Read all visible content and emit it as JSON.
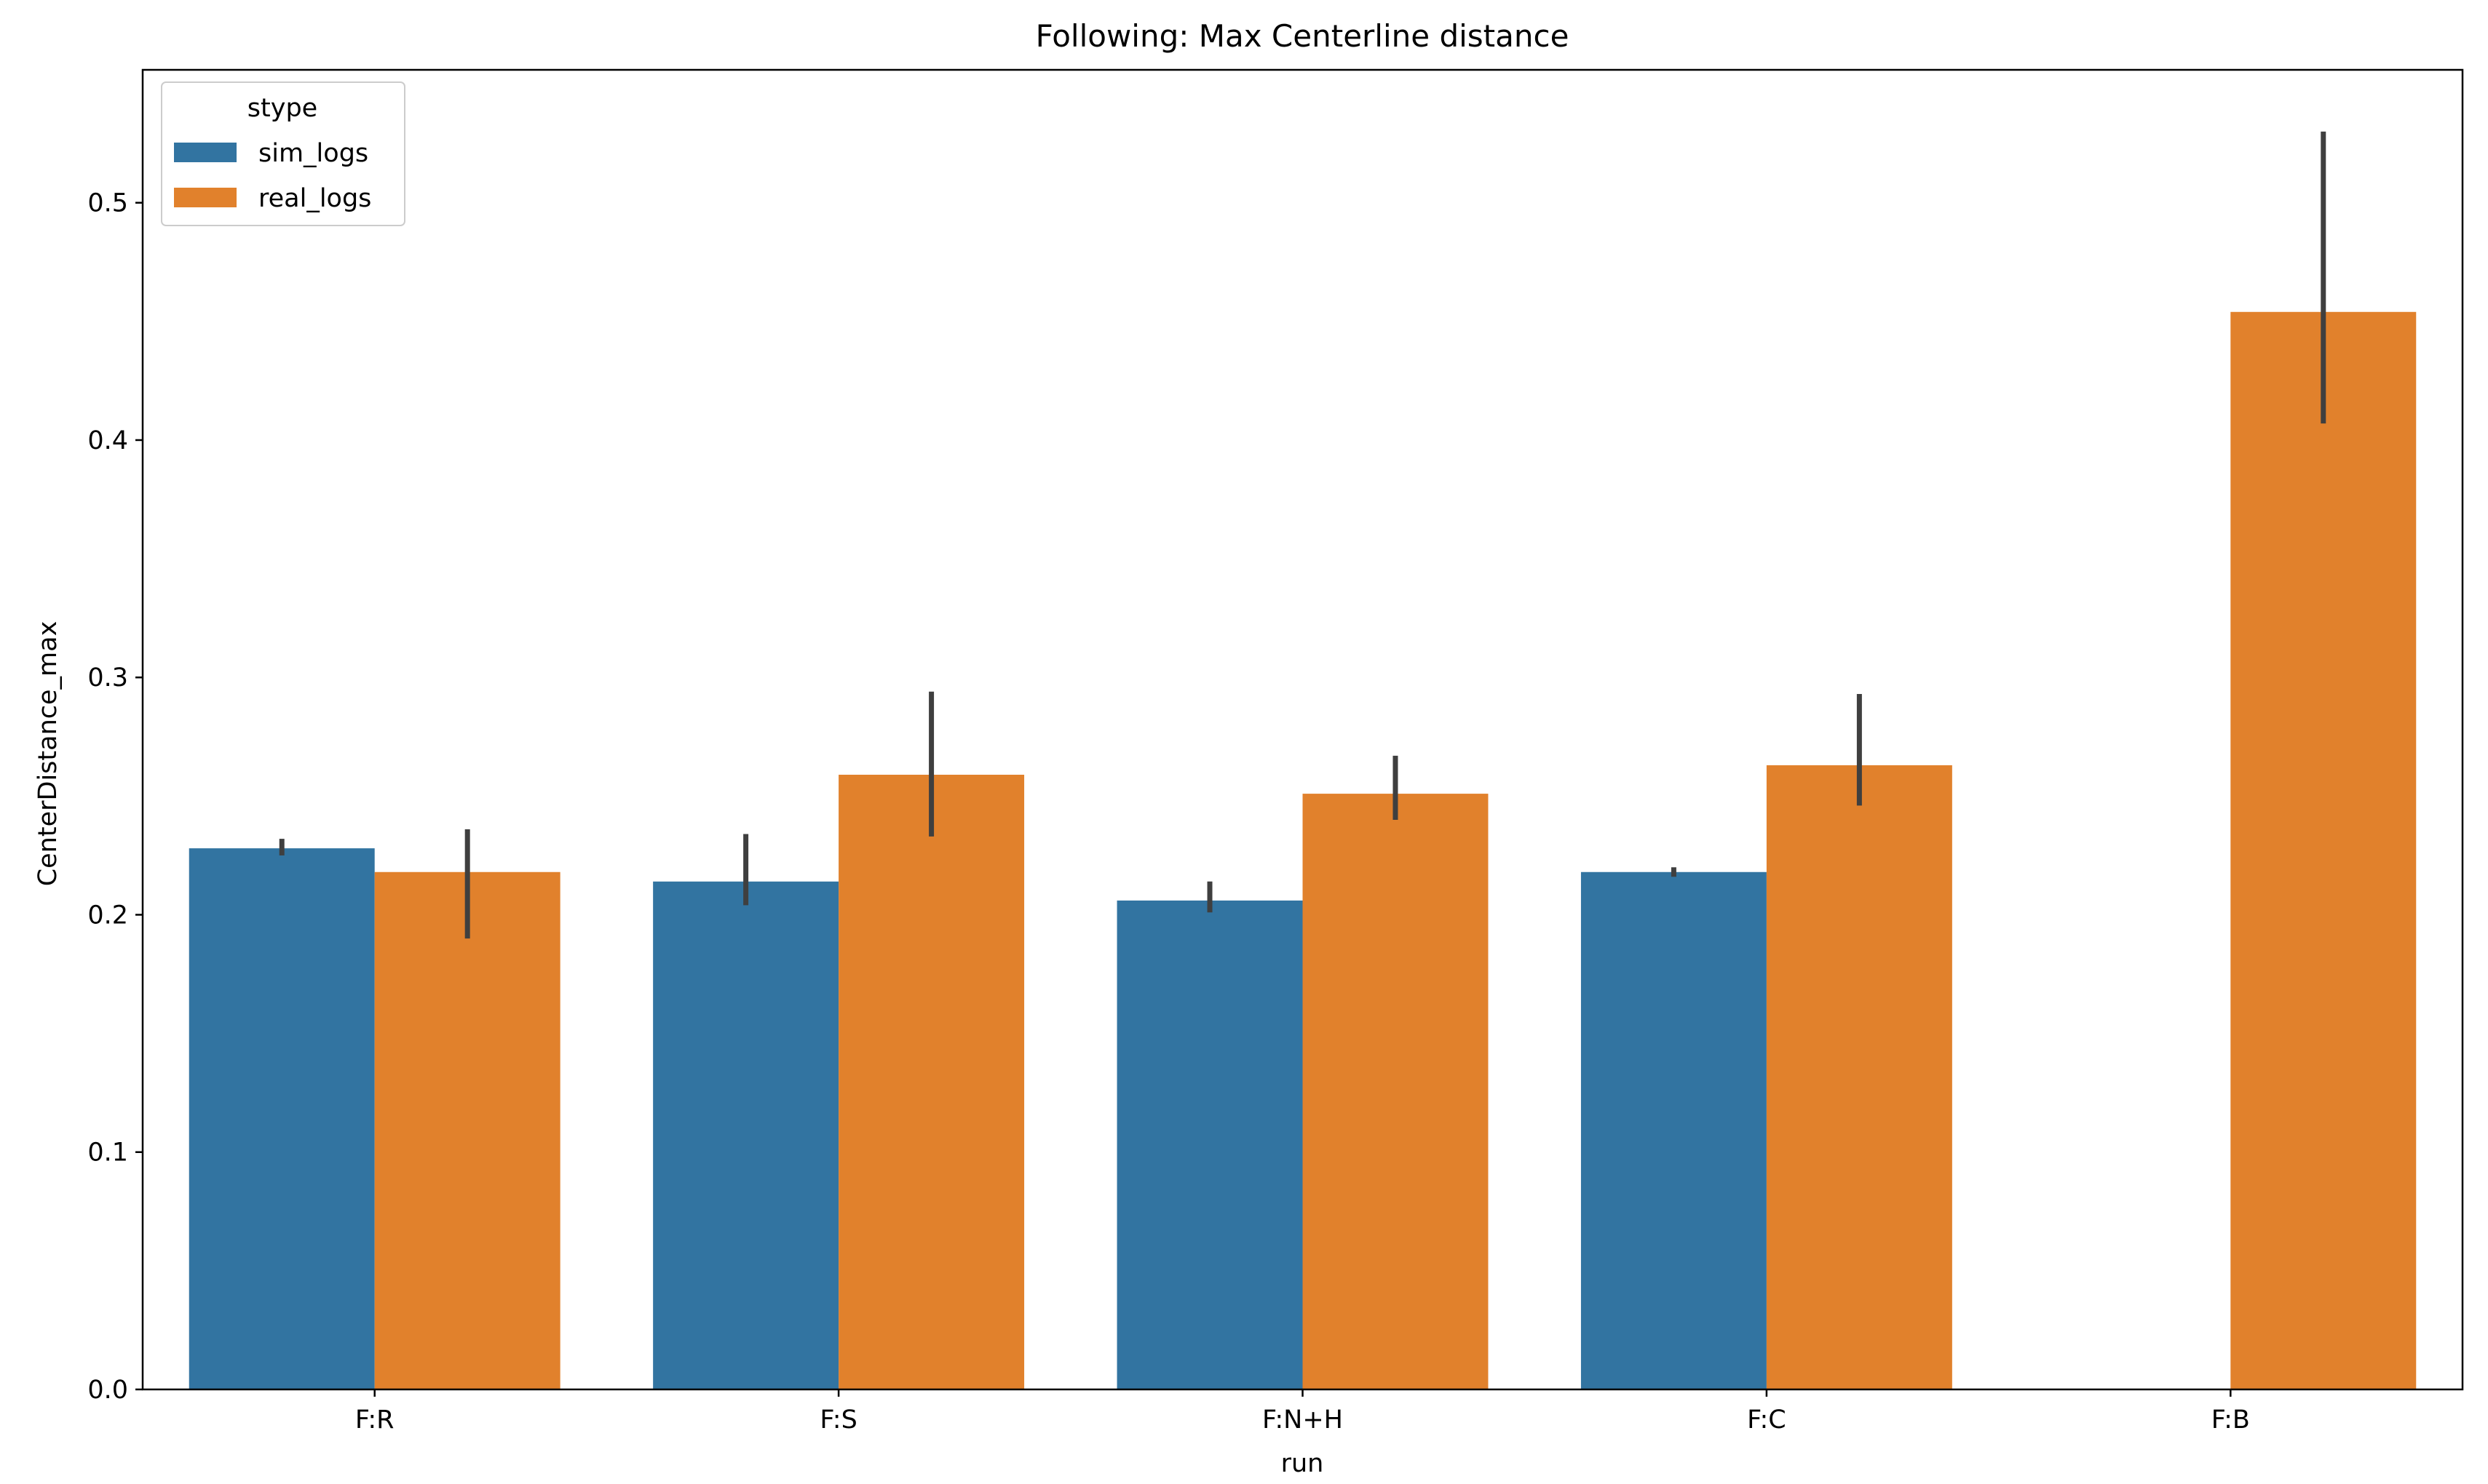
{
  "chart_data": {
    "type": "bar",
    "title": "Following: Max Centerline distance",
    "xlabel": "run",
    "ylabel": "CenterDistance_max",
    "categories": [
      "F:R",
      "F:S",
      "F:N+H",
      "F:C",
      "F:B"
    ],
    "series": [
      {
        "name": "sim_logs",
        "color": "#3274a1",
        "values": [
          0.228,
          0.214,
          0.206,
          0.218,
          null
        ],
        "ci": [
          [
            0.225,
            0.232
          ],
          [
            0.204,
            0.234
          ],
          [
            0.201,
            0.214
          ],
          [
            0.216,
            0.22
          ],
          null
        ]
      },
      {
        "name": "real_logs",
        "color": "#e1812c",
        "values": [
          0.218,
          0.259,
          0.251,
          0.263,
          0.454
        ],
        "ci": [
          [
            0.19,
            0.236
          ],
          [
            0.233,
            0.294
          ],
          [
            0.24,
            0.267
          ],
          [
            0.246,
            0.293
          ],
          [
            0.407,
            0.53
          ]
        ]
      }
    ],
    "ylim": [
      0,
      0.556
    ],
    "yticks": [
      0.0,
      0.1,
      0.2,
      0.3,
      0.4,
      0.5
    ],
    "ytick_labels": [
      "0.0",
      "0.1",
      "0.2",
      "0.3",
      "0.4",
      "0.5"
    ],
    "grid": false,
    "legend": {
      "title": "stype",
      "placement": "top-left"
    },
    "errorbar_color": "#3f3f3f"
  }
}
